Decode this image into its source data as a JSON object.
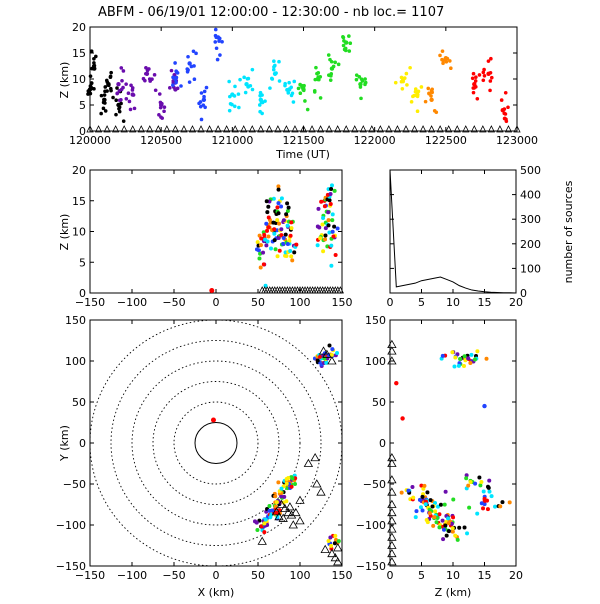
{
  "header": {
    "title": "ABFM - 06/19/01 12:00:00 - 12:30:00 - nb loc.=    1107"
  },
  "panels": {
    "time": {
      "ylabel": "Z (km)",
      "xlabel": "Time (UT)",
      "xticks": [
        "120000",
        "120500",
        "121000",
        "121500",
        "122000",
        "122500",
        "123000"
      ],
      "yticks": [
        "0",
        "5",
        "10",
        "15",
        "20"
      ]
    },
    "xz": {
      "ylabel": "Z (km)",
      "xticks": [
        "−150",
        "−100",
        "−50",
        "0",
        "50",
        "100",
        "150"
      ],
      "yticks": [
        "0",
        "5",
        "10",
        "15",
        "20"
      ]
    },
    "hist": {
      "ylabel_right": "number of sources",
      "xticks": [
        "0",
        "5",
        "10",
        "15",
        "20"
      ],
      "yticks": [
        "0",
        "100",
        "200",
        "300",
        "400",
        "500"
      ]
    },
    "xy": {
      "ylabel": "Y (km)",
      "xlabel": "X (km)",
      "xticks": [
        "−150",
        "−100",
        "−50",
        "0",
        "50",
        "100",
        "150"
      ],
      "yticks": [
        "−150",
        "−100",
        "−50",
        "0",
        "50",
        "100",
        "150"
      ]
    },
    "zy": {
      "xlabel": "Z (km)",
      "xticks": [
        "0",
        "5",
        "10",
        "15",
        "20"
      ],
      "yticks": [
        "−150",
        "−100",
        "−50",
        "0",
        "50",
        "100",
        "150"
      ]
    }
  },
  "chart_data": [
    {
      "id": "time-height",
      "type": "scatter",
      "xlim": [
        120000,
        123000
      ],
      "ylim": [
        0,
        20
      ],
      "note_colors": "sources colored by time: black, purple, blue, cyan, green, yellow, orange, red",
      "series": [
        {
          "color": "#000000",
          "x": [
            120000,
            120030,
            120100,
            120130,
            120200
          ],
          "y": [
            8,
            12,
            6,
            9,
            5
          ]
        },
        {
          "color": "#6a0dad",
          "x": [
            120200,
            120300,
            120400,
            120500,
            120600
          ],
          "y": [
            9,
            7,
            11,
            5,
            8
          ]
        },
        {
          "color": "#2244ff",
          "x": [
            120600,
            120700,
            120800,
            120900
          ],
          "y": [
            10,
            13,
            6,
            18
          ]
        },
        {
          "color": "#00e5ff",
          "x": [
            121000,
            121100,
            121200,
            121300,
            121400
          ],
          "y": [
            7,
            9,
            6,
            11,
            8
          ]
        },
        {
          "color": "#22dd22",
          "x": [
            121500,
            121600,
            121700,
            121800,
            121900
          ],
          "y": [
            8,
            10,
            12,
            17,
            9
          ]
        },
        {
          "color": "#ffee00",
          "x": [
            122200,
            122300
          ],
          "y": [
            10,
            7
          ]
        },
        {
          "color": "#ff8800",
          "x": [
            122400,
            122500
          ],
          "y": [
            6,
            14
          ]
        },
        {
          "color": "#ff0000",
          "x": [
            122700,
            122800,
            122900
          ],
          "y": [
            9,
            11,
            4
          ]
        }
      ]
    },
    {
      "id": "x-height",
      "type": "scatter",
      "xlim": [
        -150,
        150
      ],
      "ylim": [
        0,
        20
      ],
      "series": [
        {
          "color": "mixed",
          "x": [
            55,
            60,
            65,
            70,
            75,
            80,
            85,
            90,
            125,
            130,
            135,
            140
          ],
          "y": [
            6,
            10,
            12,
            9,
            13,
            8,
            11,
            7,
            10,
            12,
            16,
            8
          ]
        }
      ]
    },
    {
      "id": "height-histogram",
      "type": "line",
      "xlim": [
        0,
        20
      ],
      "ylim": [
        0,
        500
      ],
      "x": [
        0,
        1,
        2,
        3,
        4,
        5,
        6,
        7,
        8,
        9,
        10,
        11,
        12,
        13,
        14,
        15,
        16,
        17,
        18,
        19,
        20
      ],
      "y": [
        500,
        25,
        30,
        35,
        40,
        50,
        55,
        60,
        65,
        55,
        45,
        30,
        20,
        12,
        8,
        5,
        3,
        2,
        1,
        1,
        0
      ]
    },
    {
      "id": "plan-view",
      "type": "scatter",
      "xlim": [
        -150,
        150
      ],
      "ylim": [
        -150,
        150
      ],
      "range_rings_km": [
        25,
        50,
        75,
        100,
        125,
        150
      ],
      "series": [
        {
          "color": "mixed",
          "x": [
            55,
            60,
            65,
            70,
            75,
            80,
            85,
            90,
            125,
            130,
            135,
            140
          ],
          "y": [
            -100,
            -95,
            -85,
            -80,
            -70,
            -60,
            -50,
            -45,
            100,
            105,
            110,
            -120
          ]
        }
      ]
    },
    {
      "id": "height-y",
      "type": "scatter",
      "xlim": [
        0,
        20
      ],
      "ylim": [
        -150,
        150
      ],
      "series": [
        {
          "color": "mixed",
          "x": [
            4,
            6,
            7,
            8,
            9,
            10,
            11,
            12,
            14,
            16
          ],
          "y": [
            -60,
            -70,
            -80,
            -90,
            -100,
            -110,
            105,
            100,
            -50,
            -75
          ]
        }
      ]
    }
  ]
}
